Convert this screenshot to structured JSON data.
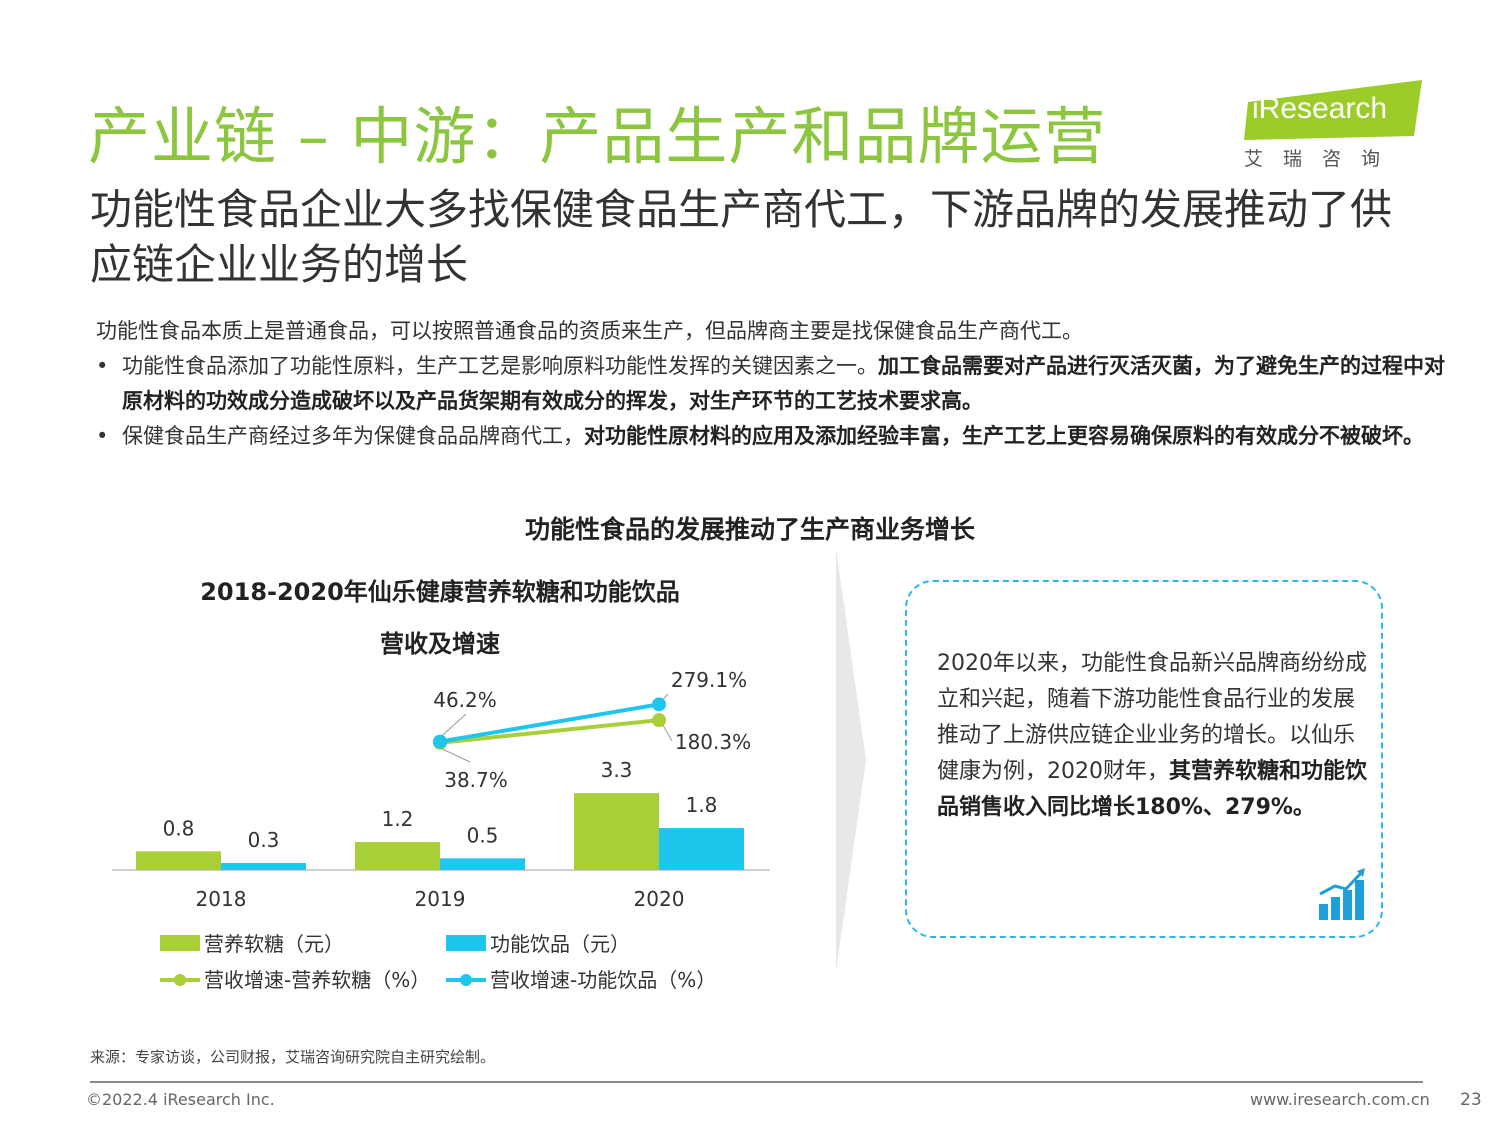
{
  "title": "产业链 – 中游：产品生产和品牌运营",
  "logo": {
    "word": "iResearch",
    "cn": "艾瑞咨询"
  },
  "subtitle": "功能性食品企业大多找保健食品生产商代工，下游品牌的发展推动了供应链企业业务的增长",
  "intro": "功能性食品本质上是普通食品，可以按照普通食品的资质来生产，但品牌商主要是找保健食品生产商代工。",
  "bullet_char": "•",
  "bullets": [
    {
      "plain": "功能性食品添加了功能性原料，生产工艺是影响原料功能性发挥的关键因素之一。",
      "bold": "加工食品需要对产品进行灭活灭菌，为了避免生产的过程中对原材料的功效成分造成破坏以及产品货架期有效成分的挥发，对生产环节的工艺技术要求高。"
    },
    {
      "plain": "保健食品生产商经过多年为保健食品品牌商代工，",
      "bold": "对功能性原材料的应用及添加经验丰富，生产工艺上更容易确保原料的有效成分不被破坏。"
    }
  ],
  "chart_header": "功能性食品的发展推动了生产商业务增长",
  "chart_data": {
    "type": "bar",
    "title_line1": "2018-2020年仙乐健康营养软糖和功能饮品",
    "title_line2": "营收及增速",
    "categories": [
      "2018",
      "2019",
      "2020"
    ],
    "series": [
      {
        "name": "营养软糖（元）",
        "kind": "bar",
        "color": "#a9cf38",
        "values": [
          0.8,
          1.2,
          3.3
        ],
        "labels": [
          "0.8",
          "1.2",
          "3.3"
        ]
      },
      {
        "name": "功能饮品（元）",
        "kind": "bar",
        "color": "#1ec6ee",
        "values": [
          0.3,
          0.5,
          1.8
        ],
        "labels": [
          "0.3",
          "0.5",
          "1.8"
        ]
      },
      {
        "name": "营收增速-营养软糖（%）",
        "kind": "line",
        "color": "#a9cf38",
        "x": [
          "2019",
          "2020"
        ],
        "values": [
          38.7,
          180.3
        ],
        "labels": [
          "38.7%",
          "180.3%"
        ]
      },
      {
        "name": "营收增速-功能饮品（%）",
        "kind": "line",
        "color": "#1ec6ee",
        "x": [
          "2019",
          "2020"
        ],
        "values": [
          46.2,
          279.1
        ],
        "labels": [
          "46.2%",
          "279.1%"
        ]
      }
    ],
    "legend": "bottom",
    "grid": false
  },
  "callout": {
    "plain": "2020年以来，功能性食品新兴品牌商纷纷成立和兴起，随着下游功能性食品行业的发展推动了上游供应链企业业务的增长。以仙乐健康为例，2020财年，",
    "bold": "其营养软糖和功能饮品销售收入同比增长180%、279%。"
  },
  "source": "来源：专家访谈，公司财报，艾瑞咨询研究院自主研究绘制。",
  "footer": {
    "copyright": "©2022.4 iResearch Inc.",
    "website": "www.iresearch.com.cn",
    "page": "23"
  },
  "colors": {
    "accent_green": "#8cc63f",
    "bar_green": "#a9cf38",
    "bar_blue": "#1ec6ee",
    "callout_border": "#29b9e8"
  }
}
